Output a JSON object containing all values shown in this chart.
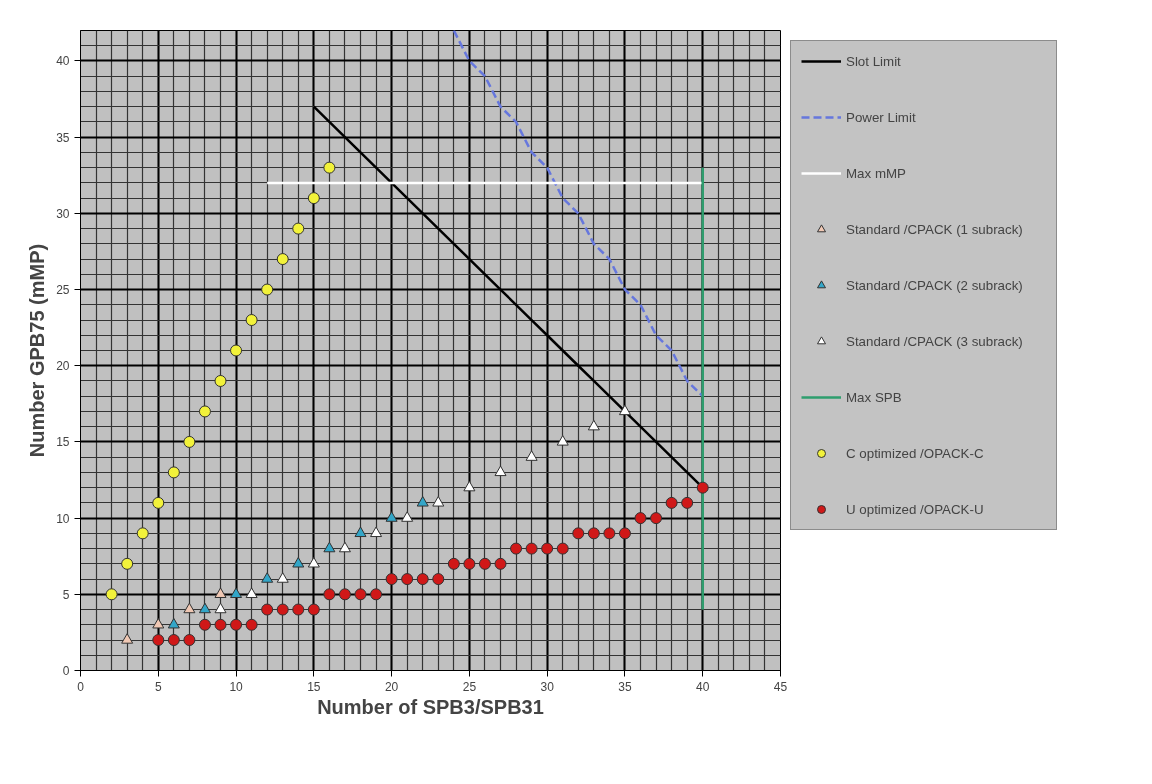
{
  "chart_data": {
    "type": "scatter",
    "xlabel": "Number of SPB3/SPB31",
    "ylabel": "Number GPB75 (mMP)",
    "xlim": [
      0,
      45
    ],
    "ylim": [
      0,
      42
    ],
    "xticks": [
      0,
      5,
      10,
      15,
      20,
      25,
      30,
      35,
      40,
      45
    ],
    "yticks": [
      0,
      5,
      10,
      15,
      20,
      25,
      30,
      35,
      40
    ],
    "grid": true,
    "legend": "right",
    "series": [
      {
        "name": "Slot Limit",
        "type": "line",
        "color": "#000000",
        "marker": "none",
        "line_style": "solid",
        "x": [
          15,
          16,
          17,
          18,
          19,
          20,
          21,
          22,
          23,
          24,
          25,
          26,
          27,
          28,
          29,
          30,
          31,
          32,
          33,
          34,
          35,
          36,
          37,
          38,
          39,
          40
        ],
        "values": [
          37,
          36,
          35,
          34,
          33,
          32,
          31,
          30,
          29,
          28,
          27,
          26,
          25,
          24,
          23,
          22,
          21,
          20,
          19,
          18,
          17,
          16,
          15,
          14,
          13,
          12
        ]
      },
      {
        "name": "Power Limit",
        "type": "line",
        "color": "#6677dd",
        "marker": "none",
        "line_style": "dashed",
        "x": [
          24,
          25,
          26,
          27,
          28,
          29,
          30,
          31,
          32,
          33,
          34,
          35,
          36,
          37,
          38,
          39,
          40
        ],
        "values": [
          42,
          40,
          39,
          37,
          36,
          34,
          33,
          31,
          30,
          28,
          27,
          25,
          24,
          22,
          21,
          19,
          18
        ]
      },
      {
        "name": "Max mMP",
        "type": "line",
        "color": "#ffffff",
        "marker": "none",
        "line_style": "solid",
        "x": [
          12,
          40
        ],
        "values": [
          32,
          32
        ]
      },
      {
        "name": "Standard /CPACK (1 subrack)",
        "color": "#f0c8b4",
        "marker": "triangle",
        "x": [
          3,
          5,
          7,
          9
        ],
        "values": [
          2,
          3,
          4,
          5
        ]
      },
      {
        "name": "Standard /CPACK (2 subrack)",
        "color": "#33a6c8",
        "marker": "triangle",
        "x": [
          6,
          8,
          10,
          12,
          14,
          16,
          18,
          20,
          22
        ],
        "values": [
          3,
          4,
          5,
          6,
          7,
          8,
          9,
          10,
          11
        ]
      },
      {
        "name": "Standard /CPACK (3 subrack)",
        "color": "#ffffff",
        "marker": "triangle",
        "x": [
          9,
          11,
          13,
          15,
          17,
          19,
          21,
          23,
          25,
          27,
          29,
          31,
          33,
          35
        ],
        "values": [
          4,
          5,
          6,
          7,
          8,
          9,
          10,
          11,
          12,
          13,
          14,
          15,
          16,
          17
        ]
      },
      {
        "name": "Max SPB",
        "type": "line",
        "color": "#2e9e6e",
        "marker": "none",
        "line_style": "solid",
        "x": [
          40,
          40
        ],
        "values": [
          4,
          33
        ]
      },
      {
        "name": "C optimized /OPACK-C",
        "color": "#f2f23a",
        "marker": "circle",
        "x": [
          2,
          3,
          4,
          5,
          6,
          7,
          8,
          9,
          10,
          11,
          12,
          13,
          14,
          15,
          16
        ],
        "values": [
          5,
          7,
          9,
          11,
          13,
          15,
          17,
          19,
          21,
          23,
          25,
          27,
          29,
          31,
          33
        ]
      },
      {
        "name": "U optimized /OPACK-U",
        "color": "#d01818",
        "marker": "circle",
        "x": [
          5,
          6,
          7,
          8,
          9,
          10,
          11,
          12,
          13,
          14,
          15,
          16,
          17,
          18,
          19,
          20,
          21,
          22,
          23,
          24,
          25,
          26,
          27,
          28,
          29,
          30,
          31,
          32,
          33,
          34,
          35,
          36,
          37,
          38,
          39,
          40
        ],
        "values": [
          2,
          2,
          2,
          3,
          3,
          3,
          3,
          4,
          4,
          4,
          4,
          5,
          5,
          5,
          5,
          6,
          6,
          6,
          6,
          7,
          7,
          7,
          7,
          8,
          8,
          8,
          8,
          9,
          9,
          9,
          9,
          10,
          10,
          11,
          11,
          12
        ]
      }
    ]
  }
}
